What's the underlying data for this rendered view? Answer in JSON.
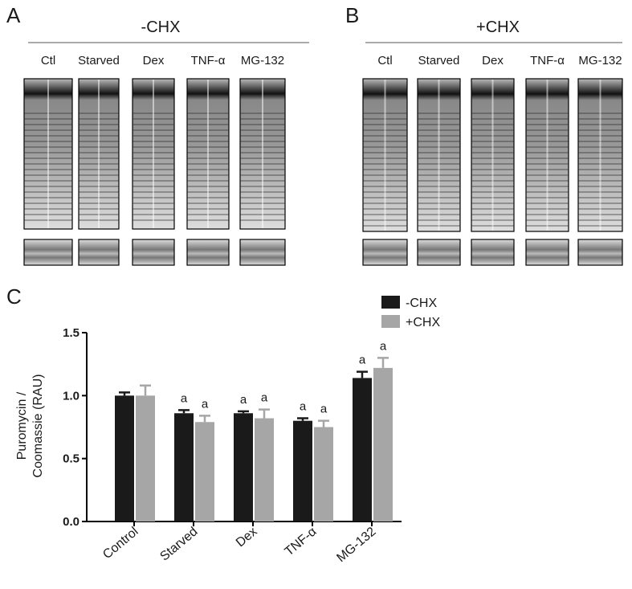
{
  "panels": {
    "A": {
      "label": "A",
      "header": "-CHX",
      "lanes": [
        "Ctl",
        "Starved",
        "Dex",
        "TNF-α",
        "MG-132"
      ]
    },
    "B": {
      "label": "B",
      "header": "+CHX",
      "lanes": [
        "Ctl",
        "Starved",
        "Dex",
        "TNF-α",
        "MG-132"
      ]
    }
  },
  "chart_data": {
    "type": "bar",
    "panel_label": "C",
    "ylabel": [
      "Puromycin /",
      "Coomassie (RAU)"
    ],
    "categories": [
      "Control",
      "Starved",
      "Dex",
      "TNF-α",
      "MG-132"
    ],
    "series": [
      {
        "name": "-CHX",
        "color": "#1a1a1a",
        "values": [
          1.0,
          0.86,
          0.86,
          0.8,
          1.14
        ],
        "errors": [
          0.025,
          0.025,
          0.015,
          0.02,
          0.05
        ],
        "annotations": [
          null,
          "a",
          "a",
          "a",
          "a"
        ]
      },
      {
        "name": "+CHX",
        "color": "#a6a6a6",
        "values": [
          1.0,
          0.79,
          0.82,
          0.75,
          1.22
        ],
        "errors": [
          0.08,
          0.05,
          0.07,
          0.05,
          0.08
        ],
        "annotations": [
          null,
          "a",
          "a",
          "a",
          "a"
        ]
      }
    ],
    "ylim": [
      0,
      1.5
    ],
    "yticks": [
      {
        "value": 0,
        "label": "0.0"
      },
      {
        "value": 0.5,
        "label": "0.5"
      },
      {
        "value": 1,
        "label": "1.0"
      },
      {
        "value": 1.5,
        "label": "1.5"
      }
    ],
    "legend": "top-right"
  }
}
